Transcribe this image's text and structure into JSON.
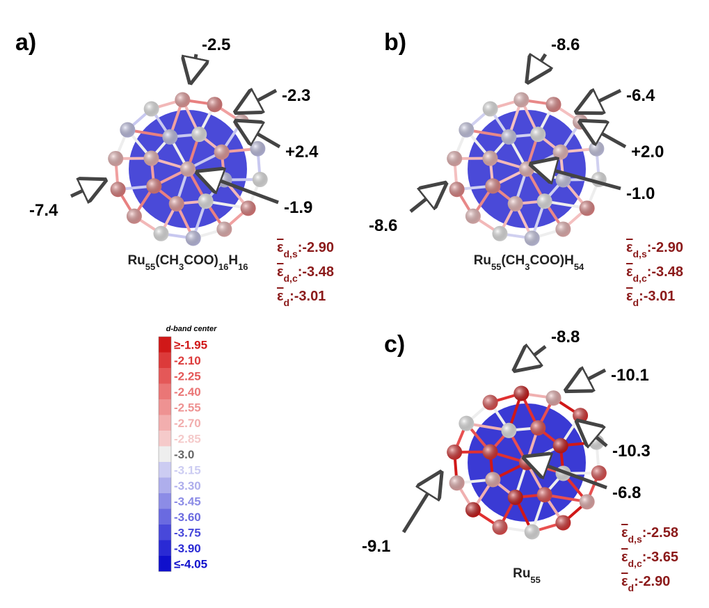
{
  "panels": [
    {
      "label": "a)",
      "formula": [
        "Ru",
        "55",
        "(CH",
        "3",
        "COO)",
        "16",
        "H",
        "16"
      ],
      "annotations": [
        "-2.5",
        "-2.3",
        "+2.4",
        "-1.9",
        "-7.4"
      ],
      "energies": [
        {
          "symbol": "ε",
          "sub": "d,s",
          "value": ":-2.90"
        },
        {
          "symbol": "ε",
          "sub": "d,c",
          "value": ":-3.48"
        },
        {
          "symbol": "ε",
          "sub": "d",
          "value": ":-3.01"
        }
      ]
    },
    {
      "label": "b)",
      "formula": [
        "Ru",
        "55",
        "(CH",
        "3",
        "COO)H",
        "54"
      ],
      "annotations": [
        "-8.6",
        "-6.4",
        "+2.0",
        "-1.0",
        "-8.6"
      ],
      "energies": [
        {
          "symbol": "ε",
          "sub": "d,s",
          "value": ":-2.90"
        },
        {
          "symbol": "ε",
          "sub": "d,c",
          "value": ":-3.48"
        },
        {
          "symbol": "ε",
          "sub": "d",
          "value": ":-3.01"
        }
      ]
    },
    {
      "label": "c)",
      "formula": [
        "Ru",
        "55"
      ],
      "annotations": [
        "-8.8",
        "-10.1",
        "-10.3",
        "-6.8",
        "-9.1"
      ],
      "energies": [
        {
          "symbol": "ε",
          "sub": "d,s",
          "value": ":-2.58"
        },
        {
          "symbol": "ε",
          "sub": "d,c",
          "value": ":-3.65"
        },
        {
          "symbol": "ε",
          "sub": "d",
          "value": ":-2.90"
        }
      ]
    }
  ],
  "colorbar": {
    "title": "d-band center",
    "labels": [
      "≥-1.95",
      "-2.10",
      "-2.25",
      "-2.40",
      "-2.55",
      "-2.70",
      "-2.85",
      "-3.0",
      "-3.15",
      "-3.30",
      "-3.45",
      "-3.60",
      "-3.75",
      "-3.90",
      "≤-4.05"
    ],
    "colors": [
      "#d01818",
      "#dc3a3a",
      "#e45858",
      "#ea7676",
      "#ee9292",
      "#f2aeae",
      "#f5caca",
      "#eeeeee",
      "#ccccf2",
      "#aeaeec",
      "#8c8ce6",
      "#6a6ae0",
      "#4848da",
      "#2a2ad4",
      "#1010cc"
    ]
  }
}
